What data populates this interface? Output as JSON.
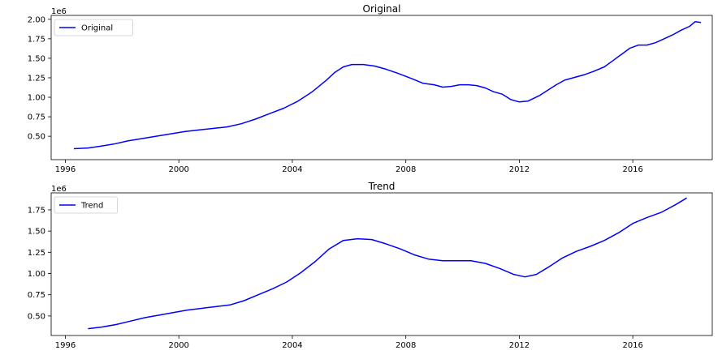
{
  "chart_data": [
    {
      "type": "line",
      "title": "Original",
      "xlabel": "",
      "ylabel": "",
      "offset_label": "1e6",
      "xlim": [
        1995.5,
        2018.8
      ],
      "ylim": [
        0.2,
        2.05
      ],
      "x_ticks": [
        1996,
        2000,
        2004,
        2008,
        2012,
        2016
      ],
      "x_tick_labels": [
        "1996",
        "2000",
        "2004",
        "2008",
        "2012",
        "2016"
      ],
      "y_ticks": [
        0.5,
        0.75,
        1.0,
        1.25,
        1.5,
        1.75,
        2.0
      ],
      "y_tick_labels": [
        "0.50",
        "0.75",
        "1.00",
        "1.25",
        "1.50",
        "1.75",
        "2.00"
      ],
      "grid": false,
      "legend_position": "upper-left",
      "series": [
        {
          "name": "Original",
          "color": "#0000ff",
          "x": [
            1996.3,
            1996.8,
            1997.2,
            1997.7,
            1998.2,
            1998.7,
            1999.2,
            1999.7,
            2000.2,
            2000.7,
            2001.2,
            2001.7,
            2002.2,
            2002.7,
            2003.2,
            2003.7,
            2004.2,
            2004.7,
            2005.2,
            2005.5,
            2005.8,
            2006.1,
            2006.5,
            2006.9,
            2007.3,
            2007.7,
            2008.2,
            2008.6,
            2009.0,
            2009.3,
            2009.6,
            2009.9,
            2010.2,
            2010.5,
            2010.8,
            2011.1,
            2011.4,
            2011.7,
            2012.0,
            2012.3,
            2012.7,
            2013.0,
            2013.3,
            2013.6,
            2014.0,
            2014.3,
            2014.6,
            2015.0,
            2015.3,
            2015.6,
            2015.9,
            2016.2,
            2016.5,
            2016.8,
            2017.1,
            2017.4,
            2017.7,
            2018.0,
            2018.2,
            2018.4
          ],
          "y": [
            0.34,
            0.35,
            0.37,
            0.4,
            0.44,
            0.47,
            0.5,
            0.53,
            0.56,
            0.58,
            0.6,
            0.62,
            0.66,
            0.72,
            0.79,
            0.86,
            0.95,
            1.07,
            1.22,
            1.32,
            1.39,
            1.42,
            1.42,
            1.4,
            1.36,
            1.31,
            1.24,
            1.18,
            1.16,
            1.13,
            1.14,
            1.16,
            1.16,
            1.15,
            1.12,
            1.07,
            1.04,
            0.97,
            0.94,
            0.95,
            1.02,
            1.09,
            1.16,
            1.22,
            1.26,
            1.29,
            1.33,
            1.39,
            1.47,
            1.55,
            1.63,
            1.67,
            1.67,
            1.7,
            1.75,
            1.8,
            1.86,
            1.91,
            1.97,
            1.96
          ]
        }
      ]
    },
    {
      "type": "line",
      "title": "Trend",
      "xlabel": "",
      "ylabel": "",
      "offset_label": "1e6",
      "xlim": [
        1995.5,
        2018.8
      ],
      "ylim": [
        0.27,
        1.95
      ],
      "x_ticks": [
        1996,
        2000,
        2004,
        2008,
        2012,
        2016
      ],
      "x_tick_labels": [
        "1996",
        "2000",
        "2004",
        "2008",
        "2012",
        "2016"
      ],
      "y_ticks": [
        0.5,
        0.75,
        1.0,
        1.25,
        1.5,
        1.75
      ],
      "y_tick_labels": [
        "0.50",
        "0.75",
        "1.00",
        "1.25",
        "1.50",
        "1.75"
      ],
      "grid": false,
      "legend_position": "upper-left",
      "series": [
        {
          "name": "Trend",
          "color": "#0000ff",
          "x": [
            1996.8,
            1997.3,
            1997.8,
            1998.3,
            1998.8,
            1999.3,
            1999.8,
            2000.3,
            2000.8,
            2001.3,
            2001.8,
            2002.3,
            2002.8,
            2003.3,
            2003.8,
            2004.3,
            2004.8,
            2005.3,
            2005.8,
            2006.3,
            2006.8,
            2007.3,
            2007.8,
            2008.3,
            2008.8,
            2009.3,
            2009.8,
            2010.3,
            2010.8,
            2011.3,
            2011.8,
            2012.2,
            2012.6,
            2013.0,
            2013.5,
            2014.0,
            2014.5,
            2015.0,
            2015.5,
            2016.0,
            2016.5,
            2017.0,
            2017.5,
            2017.9
          ],
          "y": [
            0.35,
            0.37,
            0.4,
            0.44,
            0.48,
            0.51,
            0.54,
            0.57,
            0.59,
            0.61,
            0.63,
            0.68,
            0.75,
            0.82,
            0.9,
            1.01,
            1.14,
            1.29,
            1.39,
            1.41,
            1.4,
            1.35,
            1.29,
            1.22,
            1.17,
            1.15,
            1.15,
            1.15,
            1.12,
            1.06,
            0.99,
            0.96,
            0.99,
            1.07,
            1.18,
            1.26,
            1.32,
            1.39,
            1.48,
            1.59,
            1.66,
            1.72,
            1.81,
            1.89
          ]
        }
      ]
    }
  ]
}
